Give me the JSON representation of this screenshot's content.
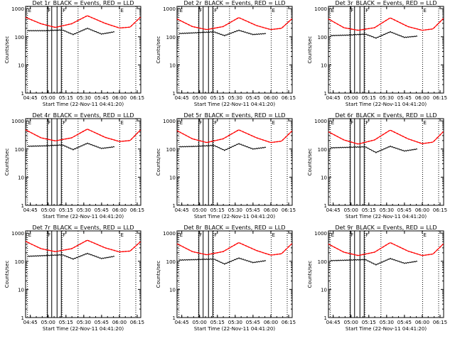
{
  "chart_data": [
    {
      "type": "line",
      "title": "Det 1r_BLACK = Events, RED = LLD",
      "xlabel": "Start Time (22-Nov-11 04:41:20)",
      "ylabel": "Counts/sec",
      "yscale": "log",
      "ylim": [
        1,
        1200
      ],
      "xlim": [
        4.6833,
        6.3
      ],
      "xticks": [
        "04:45",
        "05:00",
        "05:15",
        "05:30",
        "05:45",
        "06:00",
        "06:15"
      ],
      "yticks": [
        "1",
        "10",
        "100",
        "1000"
      ],
      "flag_lines": [
        {
          "label": "E",
          "t": 4.71
        },
        {
          "label": "F",
          "t": 4.985
        },
        {
          "label": "F",
          "t": 5.195
        },
        {
          "label": "E",
          "t": 6.005
        }
      ],
      "vlines_solid": [
        4.99,
        5.05,
        5.125,
        5.185
      ],
      "vlines_dotted": [
        5.42,
        6.23
      ],
      "series": [
        {
          "name": "LLD",
          "color": "#ff0000",
          "rise": 0.145,
          "min": 200,
          "max": 560,
          "t": [
            4.69,
            4.9,
            5.1,
            5.33,
            5.55,
            5.8,
            6.0,
            6.15,
            6.29
          ],
          "values": [
            480,
            290,
            215,
            290,
            560,
            300,
            205,
            220,
            480
          ]
        },
        {
          "name": "Events",
          "color": "#000000",
          "rise": 0.13,
          "t": [
            4.71,
            4.98,
            5.2,
            5.35,
            5.55,
            5.75,
            5.93
          ],
          "values": [
            165,
            165,
            175,
            120,
            200,
            125,
            150
          ]
        }
      ]
    },
    {
      "type": "line",
      "title": "Det 2r_BLACK = Events, RED = LLD",
      "xlabel": "Start Time (22-Nov-11 04:41:20)",
      "ylabel": "Counts/sec",
      "yscale": "log",
      "ylim": [
        1,
        1200
      ],
      "xlim": [
        4.6833,
        6.3
      ],
      "xticks": [
        "04:45",
        "05:00",
        "05:15",
        "05:30",
        "05:45",
        "06:00",
        "06:15"
      ],
      "yticks": [
        "1",
        "10",
        "100",
        "1000"
      ],
      "flag_lines": [
        {
          "label": "E",
          "t": 4.71
        },
        {
          "label": "F",
          "t": 4.985
        },
        {
          "label": "F",
          "t": 5.195
        },
        {
          "label": "E",
          "t": 6.005
        }
      ],
      "vlines_solid": [
        4.99,
        5.05,
        5.125,
        5.185
      ],
      "vlines_dotted": [
        5.42,
        6.23
      ],
      "series": [
        {
          "name": "LLD",
          "color": "#ff0000",
          "rise": 0.145,
          "min": 200,
          "max": 560,
          "t": [
            4.69,
            4.9,
            5.1,
            5.33,
            5.55,
            5.8,
            6.0,
            6.15,
            6.29
          ],
          "values": [
            420,
            230,
            180,
            230,
            480,
            250,
            180,
            200,
            420
          ]
        },
        {
          "name": "Events",
          "color": "#000000",
          "rise": 0.13,
          "t": [
            4.71,
            4.98,
            5.2,
            5.35,
            5.55,
            5.75,
            5.93
          ],
          "values": [
            130,
            140,
            150,
            110,
            170,
            120,
            130
          ]
        }
      ]
    },
    {
      "type": "line",
      "title": "Det 3r_BLACK = Events, RED = LLD",
      "xlabel": "Start Time (22-Nov-11 04:41:20)",
      "ylabel": "Counts/sec",
      "yscale": "log",
      "ylim": [
        1,
        1200
      ],
      "xlim": [
        4.6833,
        6.3
      ],
      "xticks": [
        "04:45",
        "05:00",
        "05:15",
        "05:30",
        "05:45",
        "06:00",
        "06:15"
      ],
      "yticks": [
        "1",
        "10",
        "100",
        "1000"
      ],
      "flag_lines": [
        {
          "label": "E",
          "t": 4.71
        },
        {
          "label": "F",
          "t": 4.985
        },
        {
          "label": "F",
          "t": 5.195
        },
        {
          "label": "E",
          "t": 6.005
        }
      ],
      "vlines_solid": [
        4.99,
        5.05,
        5.125,
        5.185
      ],
      "vlines_dotted": [
        5.42,
        6.23
      ],
      "series": [
        {
          "name": "LLD",
          "color": "#ff0000",
          "rise": 0.145,
          "min": 200,
          "max": 560,
          "t": [
            4.69,
            4.9,
            5.1,
            5.33,
            5.55,
            5.8,
            6.0,
            6.15,
            6.29
          ],
          "values": [
            420,
            210,
            170,
            210,
            470,
            230,
            170,
            190,
            430
          ]
        },
        {
          "name": "Events",
          "color": "#000000",
          "rise": 0.13,
          "t": [
            4.71,
            4.98,
            5.2,
            5.35,
            5.55,
            5.75,
            5.93
          ],
          "values": [
            110,
            115,
            125,
            90,
            150,
            95,
            105
          ]
        }
      ]
    },
    {
      "type": "line",
      "title": "Det 4r_BLACK = Events, RED = LLD",
      "xlabel": "Start Time (22-Nov-11 04:41:20)",
      "ylabel": "Counts/sec",
      "yscale": "log",
      "ylim": [
        1,
        1200
      ],
      "xlim": [
        4.6833,
        6.3
      ],
      "xticks": [
        "04:45",
        "05:00",
        "05:15",
        "05:30",
        "05:45",
        "06:00",
        "06:15"
      ],
      "yticks": [
        "1",
        "10",
        "100",
        "1000"
      ],
      "flag_lines": [
        {
          "label": "E",
          "t": 4.71
        },
        {
          "label": "F",
          "t": 4.985
        },
        {
          "label": "F",
          "t": 5.195
        },
        {
          "label": "E",
          "t": 6.005
        }
      ],
      "vlines_solid": [
        4.99,
        5.05,
        5.125,
        5.185
      ],
      "vlines_dotted": [
        5.42,
        6.23
      ],
      "series": [
        {
          "name": "LLD",
          "color": "#ff0000",
          "rise": 0.145,
          "min": 200,
          "max": 560,
          "t": [
            4.69,
            4.9,
            5.1,
            5.33,
            5.55,
            5.8,
            6.0,
            6.15,
            6.29
          ],
          "values": [
            470,
            250,
            195,
            250,
            510,
            260,
            185,
            200,
            460
          ]
        },
        {
          "name": "Events",
          "color": "#000000",
          "rise": 0.13,
          "t": [
            4.71,
            4.98,
            5.2,
            5.35,
            5.55,
            5.75,
            5.93
          ],
          "values": [
            125,
            130,
            140,
            95,
            160,
            105,
            120
          ]
        }
      ]
    },
    {
      "type": "line",
      "title": "Det 5r_BLACK = Events, RED = LLD",
      "xlabel": "Start Time (22-Nov-11 04:41:20)",
      "ylabel": "Counts/sec",
      "yscale": "log",
      "ylim": [
        1,
        1200
      ],
      "xlim": [
        4.6833,
        6.3
      ],
      "xticks": [
        "04:45",
        "05:00",
        "05:15",
        "05:30",
        "05:45",
        "06:00",
        "06:15"
      ],
      "yticks": [
        "1",
        "10",
        "100",
        "1000"
      ],
      "flag_lines": [
        {
          "label": "E",
          "t": 4.71
        },
        {
          "label": "F",
          "t": 4.985
        },
        {
          "label": "F",
          "t": 5.195
        },
        {
          "label": "E",
          "t": 6.005
        }
      ],
      "vlines_solid": [
        4.99,
        5.05,
        5.125,
        5.185
      ],
      "vlines_dotted": [
        5.42,
        6.23
      ],
      "series": [
        {
          "name": "LLD",
          "color": "#ff0000",
          "rise": 0.145,
          "min": 200,
          "max": 560,
          "t": [
            4.69,
            4.9,
            5.1,
            5.33,
            5.55,
            5.8,
            6.0,
            6.15,
            6.29
          ],
          "values": [
            440,
            230,
            170,
            230,
            480,
            250,
            170,
            190,
            420
          ]
        },
        {
          "name": "Events",
          "color": "#000000",
          "rise": 0.13,
          "t": [
            4.71,
            4.98,
            5.2,
            5.35,
            5.55,
            5.75,
            5.93
          ],
          "values": [
            120,
            125,
            135,
            90,
            155,
            100,
            115
          ]
        }
      ]
    },
    {
      "type": "line",
      "title": "Det 6r_BLACK = Events, RED = LLD",
      "xlabel": "Start Time (22-Nov-11 04:41:20)",
      "ylabel": "Counts/sec",
      "yscale": "log",
      "ylim": [
        1,
        1200
      ],
      "xlim": [
        4.6833,
        6.3
      ],
      "xticks": [
        "04:45",
        "05:00",
        "05:15",
        "05:30",
        "05:45",
        "06:00",
        "06:15"
      ],
      "yticks": [
        "1",
        "10",
        "100",
        "1000"
      ],
      "flag_lines": [
        {
          "label": "E",
          "t": 4.71
        },
        {
          "label": "F",
          "t": 4.985
        },
        {
          "label": "F",
          "t": 5.195
        },
        {
          "label": "E",
          "t": 6.005
        }
      ],
      "vlines_solid": [
        4.99,
        5.05,
        5.125,
        5.185
      ],
      "vlines_dotted": [
        5.42,
        6.23
      ],
      "series": [
        {
          "name": "LLD",
          "color": "#ff0000",
          "rise": 0.145,
          "min": 200,
          "max": 560,
          "t": [
            4.69,
            4.9,
            5.1,
            5.33,
            5.55,
            5.8,
            6.0,
            6.15,
            6.29
          ],
          "values": [
            400,
            210,
            150,
            210,
            470,
            230,
            155,
            175,
            400
          ]
        },
        {
          "name": "Events",
          "color": "#000000",
          "rise": 0.13,
          "t": [
            4.71,
            4.98,
            5.2,
            5.35,
            5.55,
            5.75,
            5.93
          ],
          "values": [
            110,
            115,
            120,
            75,
            125,
            85,
            100
          ]
        }
      ]
    },
    {
      "type": "line",
      "title": "Det 7r_BLACK = Events, RED = LLD",
      "xlabel": "Start Time (22-Nov-11 04:41:20)",
      "ylabel": "Counts/sec",
      "yscale": "log",
      "ylim": [
        1,
        1200
      ],
      "xlim": [
        4.6833,
        6.3
      ],
      "xticks": [
        "04:45",
        "05:00",
        "05:15",
        "05:30",
        "05:45",
        "06:00",
        "06:15"
      ],
      "yticks": [
        "1",
        "10",
        "100",
        "1000"
      ],
      "flag_lines": [
        {
          "label": "E",
          "t": 4.71
        },
        {
          "label": "F",
          "t": 4.985
        },
        {
          "label": "F",
          "t": 5.195
        },
        {
          "label": "E",
          "t": 6.005
        }
      ],
      "vlines_solid": [
        4.99,
        5.05,
        5.125,
        5.185
      ],
      "vlines_dotted": [
        5.42,
        6.23
      ],
      "series": [
        {
          "name": "LLD",
          "color": "#ff0000",
          "rise": 0.145,
          "min": 200,
          "max": 560,
          "t": [
            4.69,
            4.9,
            5.1,
            5.33,
            5.55,
            5.8,
            6.0,
            6.15,
            6.29
          ],
          "values": [
            500,
            280,
            220,
            280,
            560,
            300,
            215,
            230,
            480
          ]
        },
        {
          "name": "Events",
          "color": "#000000",
          "rise": 0.13,
          "t": [
            4.71,
            4.98,
            5.2,
            5.35,
            5.55,
            5.75,
            5.93
          ],
          "values": [
            150,
            160,
            170,
            120,
            190,
            125,
            150
          ]
        }
      ]
    },
    {
      "type": "line",
      "title": "Det 8r_BLACK = Events, RED = LLD",
      "xlabel": "Start Time (22-Nov-11 04:41:20)",
      "ylabel": "Counts/sec",
      "yscale": "log",
      "ylim": [
        1,
        1200
      ],
      "xlim": [
        4.6833,
        6.3
      ],
      "xticks": [
        "04:45",
        "05:00",
        "05:15",
        "05:30",
        "05:45",
        "06:00",
        "06:15"
      ],
      "yticks": [
        "1",
        "10",
        "100",
        "1000"
      ],
      "flag_lines": [
        {
          "label": "E",
          "t": 4.71
        },
        {
          "label": "F",
          "t": 4.985
        },
        {
          "label": "F",
          "t": 5.195
        },
        {
          "label": "E",
          "t": 6.005
        }
      ],
      "vlines_solid": [
        4.99,
        5.05,
        5.125,
        5.185
      ],
      "vlines_dotted": [
        5.42,
        6.23
      ],
      "series": [
        {
          "name": "LLD",
          "color": "#ff0000",
          "rise": 0.145,
          "min": 200,
          "max": 560,
          "t": [
            4.69,
            4.9,
            5.1,
            5.33,
            5.55,
            5.8,
            6.0,
            6.15,
            6.29
          ],
          "values": [
            410,
            220,
            170,
            220,
            460,
            240,
            165,
            185,
            410
          ]
        },
        {
          "name": "Events",
          "color": "#000000",
          "rise": 0.13,
          "t": [
            4.71,
            4.98,
            5.2,
            5.35,
            5.55,
            5.75,
            5.93
          ],
          "values": [
            110,
            115,
            120,
            80,
            130,
            90,
            105
          ]
        }
      ]
    },
    {
      "type": "line",
      "title": "Det 9r_BLACK = Events, RED = LLD",
      "xlabel": "Start Time (22-Nov-11 04:41:20)",
      "ylabel": "Counts/sec",
      "yscale": "log",
      "ylim": [
        1,
        1200
      ],
      "xlim": [
        4.6833,
        6.3
      ],
      "xticks": [
        "04:45",
        "05:00",
        "05:15",
        "05:30",
        "05:45",
        "06:00",
        "06:15"
      ],
      "yticks": [
        "1",
        "10",
        "100",
        "1000"
      ],
      "flag_lines": [
        {
          "label": "E",
          "t": 4.71
        },
        {
          "label": "F",
          "t": 4.985
        },
        {
          "label": "F",
          "t": 5.195
        },
        {
          "label": "E",
          "t": 6.005
        }
      ],
      "vlines_solid": [
        4.99,
        5.05,
        5.125,
        5.185
      ],
      "vlines_dotted": [
        5.42,
        6.23
      ],
      "series": [
        {
          "name": "LLD",
          "color": "#ff0000",
          "rise": 0.145,
          "min": 200,
          "max": 560,
          "t": [
            4.69,
            4.9,
            5.1,
            5.33,
            5.55,
            5.8,
            6.0,
            6.15,
            6.29
          ],
          "values": [
            400,
            210,
            160,
            210,
            460,
            230,
            160,
            180,
            400
          ]
        },
        {
          "name": "Events",
          "color": "#000000",
          "rise": 0.13,
          "t": [
            4.71,
            4.98,
            5.2,
            5.35,
            5.55,
            5.75,
            5.93
          ],
          "values": [
            105,
            110,
            115,
            75,
            125,
            85,
            100
          ]
        }
      ]
    }
  ]
}
